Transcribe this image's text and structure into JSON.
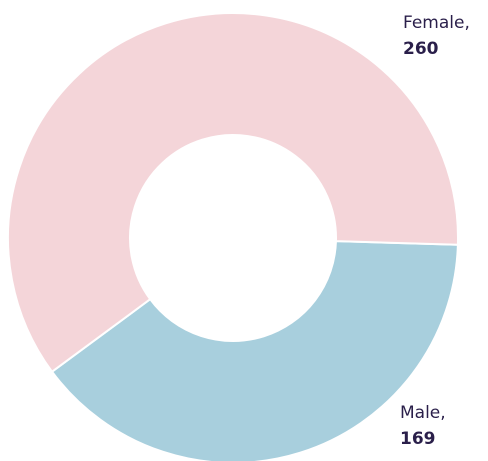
{
  "chart_data": {
    "type": "donut",
    "categories": [
      "Female,",
      "Male,"
    ],
    "values": [
      260,
      169
    ],
    "colors": [
      "#f4d5d9",
      "#a8cfdd"
    ]
  }
}
